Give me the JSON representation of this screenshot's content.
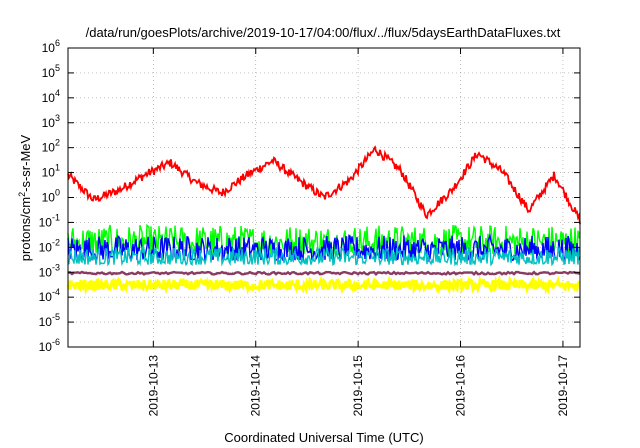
{
  "chart_data": {
    "type": "line",
    "title": "/data/run/goesPlots/archive/2019-10-17/04:00/flux/../flux/5daysEarthDataFluxes.txt",
    "xlabel": "Coordinated Universal Time (UTC)",
    "ylabel": {
      "prefix": "protons/cm",
      "sup": "2",
      "suffix": "-s-sr-MeV"
    },
    "x_range": [
      "2019-10-12T04:00",
      "2019-10-17T04:00"
    ],
    "x_ticks": [
      "2019-10-13",
      "2019-10-14",
      "2019-10-15",
      "2019-10-16",
      "2019-10-17"
    ],
    "y_scale": "log",
    "y_ticks": [
      {
        "base": "10",
        "exp": "-6"
      },
      {
        "base": "10",
        "exp": "-5"
      },
      {
        "base": "10",
        "exp": "-4"
      },
      {
        "base": "10",
        "exp": "-3"
      },
      {
        "base": "10",
        "exp": "-2"
      },
      {
        "base": "10",
        "exp": "-1"
      },
      {
        "base": "10",
        "exp": "0"
      },
      {
        "base": "10",
        "exp": "1"
      },
      {
        "base": "10",
        "exp": "2"
      },
      {
        "base": "10",
        "exp": "3"
      },
      {
        "base": "10",
        "exp": "4"
      },
      {
        "base": "10",
        "exp": "5"
      },
      {
        "base": "10",
        "exp": "6"
      }
    ],
    "ylim": [
      1e-06,
      1000000.0
    ],
    "grid": true,
    "series": [
      {
        "color": "#ff0000",
        "x": [
          "2019-10-12T04:00",
          "2019-10-12T10:00",
          "2019-10-12T16:00",
          "2019-10-12T22:00",
          "2019-10-13T04:00",
          "2019-10-13T10:00",
          "2019-10-13T16:00",
          "2019-10-13T22:00",
          "2019-10-14T04:00",
          "2019-10-14T10:00",
          "2019-10-14T16:00",
          "2019-10-14T22:00",
          "2019-10-15T04:00",
          "2019-10-15T10:00",
          "2019-10-15T16:00",
          "2019-10-15T22:00",
          "2019-10-16T04:00",
          "2019-10-16T10:00",
          "2019-10-16T16:00",
          "2019-10-16T22:00",
          "2019-10-17T04:00"
        ],
        "y": [
          8,
          0.8,
          2,
          8,
          25,
          4,
          1.5,
          8,
          30,
          5,
          1,
          5,
          90,
          12,
          0.2,
          2,
          60,
          10,
          0.3,
          8,
          0.12
        ]
      },
      {
        "color": "#00ff00",
        "band": [
          0.005,
          0.08
        ]
      },
      {
        "color": "#0000ff",
        "band": [
          0.003,
          0.03
        ]
      },
      {
        "color": "#00c0c0",
        "band": [
          0.002,
          0.01
        ]
      },
      {
        "color": "#8b3a62",
        "band": [
          0.0007,
          0.0012
        ]
      },
      {
        "color": "#ffff00",
        "band": [
          0.0002,
          0.0005
        ]
      }
    ]
  }
}
